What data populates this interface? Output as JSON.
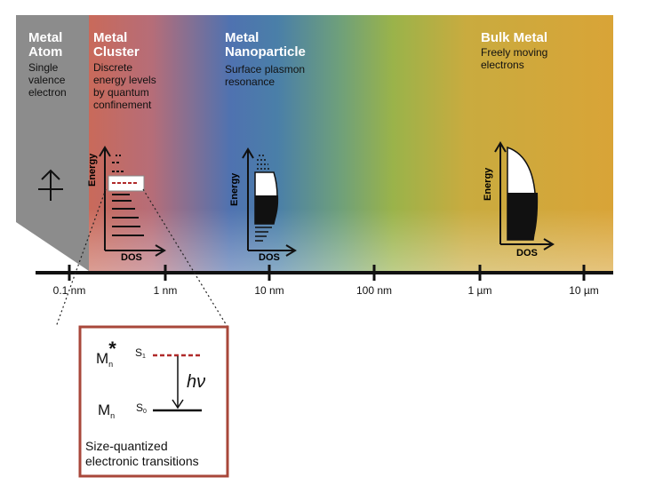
{
  "bands": [
    {
      "title_line1": "Metal",
      "title_line2": "Atom",
      "desc": [
        "Single",
        "valence",
        "electron"
      ]
    },
    {
      "title_line1": "Metal",
      "title_line2": "Cluster",
      "desc": [
        "Discrete",
        "energy levels",
        "by quantum",
        "confinement"
      ]
    },
    {
      "title_line1": "Metal",
      "title_line2": "Nanoparticle",
      "desc": [
        "Surface plasmon",
        "resonance"
      ]
    },
    {
      "title_line1": "Bulk Metal",
      "title_line2": "",
      "desc": [
        "Freely moving",
        "electrons"
      ]
    }
  ],
  "scale_ticks": [
    "0.1 nm",
    "1 nm",
    "10 nm",
    "100 nm",
    "1 µm",
    "10 µm"
  ],
  "dos_axes": {
    "y_label": "Energy",
    "x_label": "DOS"
  },
  "inset": {
    "excited_state": "M",
    "excited_sub": "n",
    "excited_star": "*",
    "excited_level": "S",
    "excited_level_sub": "1",
    "ground_state": "M",
    "ground_sub": "n",
    "ground_level": "S",
    "ground_level_sub": "0",
    "photon_h": "h",
    "photon_nu": "ν",
    "caption_line1": "Size-quantized",
    "caption_line2": "electronic transitions"
  },
  "colors": {
    "atom_gray": "#8c8c8c",
    "cluster_red": "#c96a5a",
    "nano_blue": "#4f72b0",
    "transition_green": "#8db04a",
    "bulk_gold": "#d9a437",
    "title_white": "#ffffff",
    "inset_border": "#a8473a",
    "dashed_red": "#b02a2a"
  }
}
